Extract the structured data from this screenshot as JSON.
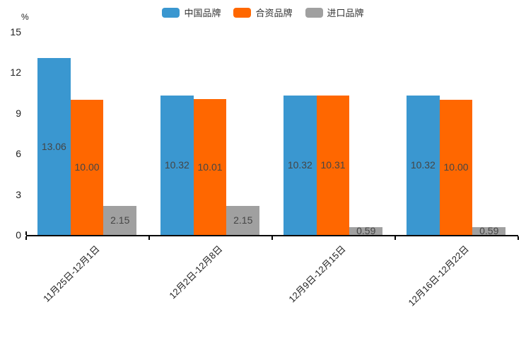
{
  "chart_data": {
    "type": "bar",
    "title": "",
    "xlabel": "",
    "ylabel": "%",
    "categories": [
      "11月25日-12月1日",
      "12月2日-12月8日",
      "12月9日-12月15日",
      "12月16日-12月22日"
    ],
    "series": [
      {
        "name": "中国品牌",
        "color": "#3A97D0",
        "values": [
          13.06,
          10.32,
          10.32,
          10.32
        ]
      },
      {
        "name": "合资品牌",
        "color": "#FF6700",
        "values": [
          10.0,
          10.01,
          10.31,
          10.0
        ]
      },
      {
        "name": "进口品牌",
        "color": "#A0A0A0",
        "values": [
          2.15,
          2.15,
          0.59,
          0.59
        ]
      }
    ],
    "yticks": [
      0,
      3,
      6,
      9,
      12,
      15
    ],
    "ylim": [
      0,
      15
    ],
    "legend_position": "top",
    "grid": false,
    "value_label_decimals": 2
  },
  "style": {
    "bar_label_color": "#454545",
    "axis_label_color": "#222222",
    "legend_label_color": "#333333",
    "axis_line_color": "#000000"
  }
}
